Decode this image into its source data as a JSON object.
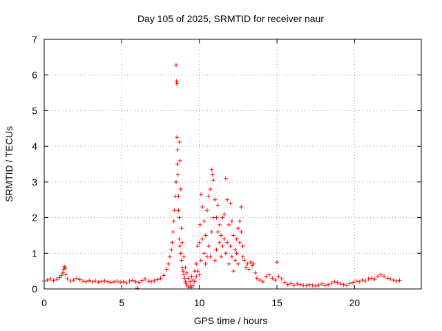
{
  "chart_data": {
    "type": "scatter",
    "title": "Day 105 of 2025, SRMTID for receiver naur",
    "xlabel": "GPS time / hours",
    "ylabel": "SRMTID / TECUs",
    "xlim": [
      0,
      24.3
    ],
    "ylim": [
      0,
      7
    ],
    "xticks": [
      0,
      5,
      10,
      15,
      20
    ],
    "yticks": [
      0,
      1,
      2,
      3,
      4,
      5,
      6,
      7
    ],
    "grid": true,
    "marker": "+",
    "series": [
      {
        "name": "SRMTID",
        "color": "#ff0000",
        "x": [
          0.0,
          0.2,
          0.4,
          0.6,
          0.8,
          1.0,
          1.1,
          1.2,
          1.25,
          1.3,
          1.35,
          1.4,
          1.5,
          1.7,
          1.9,
          2.1,
          2.3,
          2.5,
          2.7,
          2.9,
          3.1,
          3.3,
          3.5,
          3.7,
          3.9,
          4.1,
          4.3,
          4.5,
          4.7,
          4.9,
          5.1,
          5.3,
          5.5,
          5.7,
          5.9,
          6.0,
          6.1,
          6.3,
          6.5,
          6.7,
          6.9,
          7.1,
          7.3,
          7.5,
          7.7,
          7.9,
          8.0,
          8.1,
          8.2,
          8.25,
          8.3,
          8.35,
          8.4,
          8.45,
          8.5,
          8.5,
          8.52,
          8.55,
          8.55,
          8.6,
          8.6,
          8.62,
          8.65,
          8.65,
          8.7,
          8.7,
          8.72,
          8.75,
          8.75,
          8.8,
          8.8,
          8.85,
          8.85,
          8.9,
          8.9,
          8.95,
          9.0,
          9.0,
          9.05,
          9.1,
          9.1,
          9.15,
          9.2,
          9.2,
          9.3,
          9.3,
          9.4,
          9.4,
          9.5,
          9.5,
          9.6,
          9.6,
          9.7,
          9.7,
          9.8,
          9.8,
          9.9,
          9.9,
          10.0,
          10.0,
          10.05,
          10.1,
          10.1,
          10.2,
          10.2,
          10.3,
          10.3,
          10.4,
          10.4,
          10.5,
          10.5,
          10.6,
          10.6,
          10.7,
          10.7,
          10.8,
          10.8,
          10.85,
          10.9,
          10.9,
          11.0,
          11.0,
          11.1,
          11.1,
          11.2,
          11.2,
          11.3,
          11.3,
          11.4,
          11.4,
          11.5,
          11.5,
          11.6,
          11.6,
          11.7,
          11.7,
          11.8,
          11.8,
          11.9,
          11.9,
          12.0,
          12.0,
          12.1,
          12.1,
          12.2,
          12.2,
          12.3,
          12.3,
          12.4,
          12.4,
          12.5,
          12.5,
          12.6,
          12.6,
          12.7,
          12.7,
          12.8,
          12.8,
          12.9,
          13.0,
          13.1,
          13.2,
          13.3,
          13.4,
          13.5,
          13.6,
          13.7,
          13.9,
          14.1,
          14.3,
          14.5,
          14.7,
          14.9,
          15.0,
          15.1,
          15.3,
          15.5,
          15.7,
          15.9,
          16.1,
          16.3,
          16.5,
          16.7,
          16.9,
          17.1,
          17.3,
          17.5,
          17.7,
          17.9,
          18.1,
          18.3,
          18.5,
          18.7,
          18.9,
          19.1,
          19.3,
          19.5,
          19.7,
          19.9,
          20.1,
          20.3,
          20.5,
          20.7,
          20.9,
          21.1,
          21.3,
          21.5,
          21.7,
          21.9,
          22.1,
          22.3,
          22.5,
          22.7,
          22.9
        ],
        "y": [
          0.22,
          0.25,
          0.28,
          0.24,
          0.27,
          0.32,
          0.38,
          0.45,
          0.55,
          0.62,
          0.58,
          0.4,
          0.28,
          0.22,
          0.25,
          0.3,
          0.26,
          0.22,
          0.2,
          0.24,
          0.2,
          0.22,
          0.19,
          0.21,
          0.23,
          0.2,
          0.18,
          0.2,
          0.22,
          0.19,
          0.2,
          0.17,
          0.22,
          0.24,
          0.2,
          0.02,
          0.18,
          0.24,
          0.28,
          0.22,
          0.2,
          0.23,
          0.26,
          0.3,
          0.38,
          0.55,
          0.7,
          0.9,
          1.1,
          1.3,
          1.6,
          1.9,
          2.2,
          2.6,
          3.0,
          6.28,
          5.82,
          5.75,
          4.25,
          3.9,
          3.5,
          3.2,
          2.6,
          2.2,
          2.0,
          1.4,
          4.12,
          1.2,
          3.6,
          1.0,
          2.8,
          0.8,
          1.7,
          0.6,
          1.3,
          0.5,
          0.4,
          0.9,
          0.3,
          0.2,
          0.6,
          0.15,
          0.1,
          0.45,
          0.05,
          0.3,
          0.08,
          0.2,
          0.05,
          0.35,
          0.1,
          0.25,
          0.2,
          0.5,
          0.35,
          0.7,
          0.5,
          1.2,
          0.4,
          1.3,
          1.8,
          0.8,
          2.65,
          1.4,
          2.3,
          1.0,
          1.9,
          0.7,
          1.5,
          0.9,
          2.2,
          1.2,
          2.6,
          0.9,
          2.8,
          1.6,
          3.35,
          3.2,
          2.0,
          3.05,
          0.8,
          2.5,
          1.1,
          2.0,
          1.6,
          2.35,
          1.3,
          1.8,
          0.9,
          1.5,
          1.2,
          2.0,
          1.4,
          2.1,
          3.1,
          1.0,
          2.5,
          1.3,
          1.8,
          0.7,
          2.4,
          1.2,
          1.9,
          0.9,
          1.5,
          0.5,
          1.1,
          0.8,
          1.4,
          1.0,
          1.7,
          0.7,
          1.3,
          1.9,
          2.3,
          1.6,
          0.9,
          1.2,
          0.8,
          0.6,
          0.7,
          0.55,
          0.75,
          0.65,
          0.7,
          0.45,
          0.3,
          0.25,
          0.2,
          0.35,
          0.4,
          0.3,
          0.25,
          0.75,
          0.35,
          0.28,
          0.18,
          0.12,
          0.15,
          0.1,
          0.14,
          0.12,
          0.1,
          0.09,
          0.12,
          0.1,
          0.08,
          0.11,
          0.14,
          0.1,
          0.12,
          0.16,
          0.2,
          0.18,
          0.14,
          0.12,
          0.1,
          0.15,
          0.18,
          0.22,
          0.2,
          0.25,
          0.22,
          0.28,
          0.3,
          0.27,
          0.35,
          0.4,
          0.36,
          0.3,
          0.28,
          0.25,
          0.22,
          0.24
        ]
      }
    ]
  }
}
